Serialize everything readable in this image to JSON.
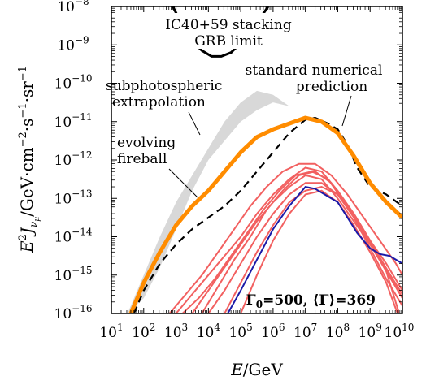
{
  "chart_data": {
    "type": "line",
    "xlabel_var": "E",
    "xlabel_unit": "/GeV",
    "ylabel_prefix": "E",
    "ylabel_sup": "2",
    "ylabel_J": "J",
    "ylabel_sub_nu": "ν",
    "ylabel_sub_mu": "μ",
    "ylabel_unit_1": "/GeV·cm",
    "ylabel_exp_1": "−2",
    "ylabel_unit_2": "·s",
    "ylabel_exp_2": "−1",
    "ylabel_unit_3": "·sr",
    "ylabel_exp_3": "−1",
    "xscale": "log",
    "yscale": "log",
    "xlim": [
      10,
      10000000000.0
    ],
    "ylim": [
      1e-16,
      1e-08
    ],
    "x_ticks": [
      {
        "base": "10",
        "exp": "1",
        "value": 1
      },
      {
        "base": "10",
        "exp": "2",
        "value": 2
      },
      {
        "base": "10",
        "exp": "3",
        "value": 3
      },
      {
        "base": "10",
        "exp": "4",
        "value": 4
      },
      {
        "base": "10",
        "exp": "5",
        "value": 5
      },
      {
        "base": "10",
        "exp": "6",
        "value": 6
      },
      {
        "base": "10",
        "exp": "7",
        "value": 7
      },
      {
        "base": "10",
        "exp": "8",
        "value": 8
      },
      {
        "base": "10",
        "exp": "9",
        "value": 9
      },
      {
        "base": "10",
        "exp": "10",
        "value": 10
      }
    ],
    "y_ticks": [
      {
        "base": "10",
        "exp": "−8",
        "value": -8
      },
      {
        "base": "10",
        "exp": "−9",
        "value": -9
      },
      {
        "base": "10",
        "exp": "−10",
        "value": -10
      },
      {
        "base": "10",
        "exp": "−11",
        "value": -11
      },
      {
        "base": "10",
        "exp": "−12",
        "value": -12
      },
      {
        "base": "10",
        "exp": "−13",
        "value": -13
      },
      {
        "base": "10",
        "exp": "−14",
        "value": -14
      },
      {
        "base": "10",
        "exp": "−15",
        "value": -15
      },
      {
        "base": "10",
        "exp": "−16",
        "value": -16
      }
    ],
    "annotations": {
      "stacking_line1": "IC40+59 stacking",
      "stacking_line2": "GRB limit",
      "numerical_line1": "standard numerical",
      "numerical_line2": "prediction",
      "subphoto_line1": "subphotospheric",
      "subphoto_line2": "extrapolation",
      "evolving_line1": "evolving",
      "evolving_line2": "fireball",
      "params": {
        "gamma0_symbol": "Γ",
        "gamma0_sub": "0",
        "gamma0_value": "=500, ",
        "gamma_avg": "⟨Γ⟩",
        "gamma_avg_value": "=369"
      }
    },
    "colors": {
      "band": "#d8d8d8",
      "evolving": "#ff8c00",
      "dashed": "#000000",
      "limit": "#000000",
      "red_curves": "#f26060",
      "blue_curve": "#1a1aa8"
    },
    "series": [
      {
        "role": "subphotospheric-band",
        "upper": {
          "log_x": [
            1.5,
            2.0,
            2.5,
            3.0,
            3.5,
            4.0,
            4.5,
            5.0,
            5.5,
            6.0,
            6.5,
            7.0,
            7.5,
            8.0,
            8.5,
            9.0,
            9.5,
            10.0
          ],
          "log_y": [
            -16.0,
            -15.0,
            -14.0,
            -13.1,
            -12.4,
            -11.7,
            -11.0,
            -10.5,
            -10.2,
            -10.3,
            -10.6,
            -10.9,
            -11.3,
            -11.8,
            -12.3,
            -12.6,
            -12.8,
            -13.1
          ]
        },
        "lower": {
          "log_x": [
            10.0,
            9.5,
            9.0,
            8.5,
            8.0,
            7.5,
            7.0,
            6.5,
            6.0,
            5.5,
            5.0,
            4.5,
            4.0,
            3.5,
            3.0,
            2.5,
            2.0,
            1.5
          ],
          "log_y": [
            -13.1,
            -12.8,
            -12.6,
            -12.3,
            -11.8,
            -11.3,
            -10.9,
            -10.6,
            -10.5,
            -10.7,
            -11.0,
            -11.5,
            -12.0,
            -12.8,
            -13.8,
            -14.8,
            -15.6,
            -16.0
          ]
        }
      },
      {
        "role": "ic40-59-limit",
        "log_x": [
          2.9,
          3.2,
          3.5,
          3.8,
          4.1,
          4.4,
          4.7,
          5.0,
          5.3,
          5.6,
          5.85
        ],
        "log_y": [
          -8.0,
          -8.5,
          -8.9,
          -9.15,
          -9.3,
          -9.3,
          -9.2,
          -8.95,
          -8.65,
          -8.3,
          -8.0
        ]
      },
      {
        "role": "standard-numerical-prediction",
        "log_x": [
          1.7,
          2.0,
          2.5,
          3.0,
          3.5,
          4.0,
          4.5,
          5.0,
          5.5,
          6.0,
          6.5,
          7.0,
          7.3,
          7.7,
          8.0,
          8.3,
          8.6,
          9.0,
          9.5,
          10.0
        ],
        "log_y": [
          -16.0,
          -15.4,
          -14.7,
          -14.2,
          -13.8,
          -13.5,
          -13.2,
          -12.8,
          -12.3,
          -11.8,
          -11.3,
          -10.95,
          -10.9,
          -11.05,
          -11.2,
          -11.6,
          -12.2,
          -12.7,
          -12.9,
          -13.2
        ]
      },
      {
        "role": "evolving-fireball",
        "log_x": [
          1.6,
          2.0,
          2.5,
          3.0,
          3.5,
          4.0,
          4.5,
          5.0,
          5.5,
          6.0,
          6.5,
          7.0,
          7.5,
          8.0,
          8.5,
          9.0,
          9.5,
          10.0
        ],
        "log_y": [
          -16.0,
          -15.2,
          -14.4,
          -13.7,
          -13.2,
          -12.8,
          -12.3,
          -11.8,
          -11.4,
          -11.2,
          -11.05,
          -10.9,
          -11.0,
          -11.3,
          -11.9,
          -12.6,
          -13.1,
          -13.5
        ]
      },
      {
        "role": "individual-burst",
        "log_x": [
          3.0,
          3.5,
          4.0,
          4.5,
          5.0,
          5.5,
          6.0,
          6.5,
          7.0,
          7.5,
          8.0,
          8.5,
          9.0,
          9.5,
          10.0
        ],
        "log_y": [
          -16.0,
          -15.5,
          -15.0,
          -14.5,
          -14.0,
          -13.4,
          -12.9,
          -12.5,
          -12.2,
          -12.3,
          -12.8,
          -13.4,
          -14.1,
          -14.7,
          -15.4
        ]
      },
      {
        "role": "individual-burst",
        "log_x": [
          3.5,
          4.0,
          4.5,
          5.0,
          5.5,
          6.0,
          6.5,
          7.0,
          7.5,
          8.0,
          8.5,
          9.0,
          9.5,
          10.0
        ],
        "log_y": [
          -16.0,
          -15.4,
          -14.8,
          -14.2,
          -13.6,
          -13.1,
          -12.7,
          -12.4,
          -12.5,
          -13.0,
          -13.6,
          -14.2,
          -14.9,
          -15.6
        ]
      },
      {
        "role": "individual-burst",
        "log_x": [
          3.2,
          3.7,
          4.2,
          4.7,
          5.2,
          5.7,
          6.2,
          6.7,
          7.2,
          7.7,
          8.2,
          8.7,
          9.2,
          9.7,
          10.0
        ],
        "log_y": [
          -16.0,
          -15.6,
          -15.1,
          -14.5,
          -13.9,
          -13.3,
          -12.8,
          -12.4,
          -12.3,
          -12.5,
          -13.1,
          -13.7,
          -14.4,
          -15.1,
          -15.5
        ]
      },
      {
        "role": "individual-burst",
        "log_x": [
          4.0,
          4.5,
          5.0,
          5.5,
          6.0,
          6.5,
          7.0,
          7.5,
          8.0,
          8.5,
          9.0,
          9.5,
          10.0
        ],
        "log_y": [
          -16.0,
          -15.4,
          -14.7,
          -14.0,
          -13.4,
          -12.9,
          -12.6,
          -12.6,
          -12.9,
          -13.5,
          -14.3,
          -15.1,
          -15.8
        ]
      },
      {
        "role": "individual-burst",
        "log_x": [
          4.5,
          5.0,
          5.5,
          6.0,
          6.5,
          7.0,
          7.5,
          8.0,
          8.5,
          9.0,
          9.5,
          9.9
        ],
        "log_y": [
          -16.0,
          -15.2,
          -14.4,
          -13.7,
          -13.1,
          -12.8,
          -12.7,
          -12.9,
          -13.4,
          -14.1,
          -14.9,
          -16.0
        ]
      },
      {
        "role": "individual-burst",
        "log_x": [
          3.8,
          4.3,
          4.8,
          5.3,
          5.8,
          6.3,
          6.8,
          7.3,
          7.8,
          8.3,
          8.8,
          9.3,
          9.8,
          10.0
        ],
        "log_y": [
          -16.0,
          -15.3,
          -14.6,
          -14.0,
          -13.3,
          -12.8,
          -12.4,
          -12.3,
          -12.6,
          -13.2,
          -13.9,
          -14.6,
          -15.3,
          -15.6
        ]
      },
      {
        "role": "individual-burst",
        "log_x": [
          5.0,
          5.5,
          6.0,
          6.5,
          7.0,
          7.5,
          8.0,
          8.5,
          9.0,
          9.5,
          9.85
        ],
        "log_y": [
          -16.0,
          -15.0,
          -14.1,
          -13.4,
          -12.9,
          -12.8,
          -13.1,
          -13.7,
          -14.4,
          -15.2,
          -16.0
        ]
      },
      {
        "role": "individual-burst",
        "log_x": [
          2.8,
          3.3,
          3.8,
          4.3,
          4.8,
          5.3,
          5.8,
          6.3,
          6.8,
          7.3,
          7.8,
          8.3,
          8.8,
          9.3,
          9.8,
          10.0
        ],
        "log_y": [
          -16.0,
          -15.5,
          -15.0,
          -14.4,
          -13.8,
          -13.2,
          -12.7,
          -12.3,
          -12.1,
          -12.1,
          -12.4,
          -12.9,
          -13.5,
          -14.1,
          -14.7,
          -15.0
        ]
      },
      {
        "role": "single-burst-blue",
        "log_x": [
          4.6,
          5.0,
          5.5,
          6.0,
          6.5,
          6.8,
          7.0,
          7.3,
          7.6,
          8.0,
          8.3,
          8.6,
          9.0,
          9.3,
          9.6,
          10.0
        ],
        "log_y": [
          -16.0,
          -15.4,
          -14.6,
          -13.8,
          -13.2,
          -12.9,
          -12.7,
          -12.75,
          -12.9,
          -13.1,
          -13.5,
          -13.9,
          -14.3,
          -14.45,
          -14.5,
          -14.7
        ]
      }
    ]
  }
}
